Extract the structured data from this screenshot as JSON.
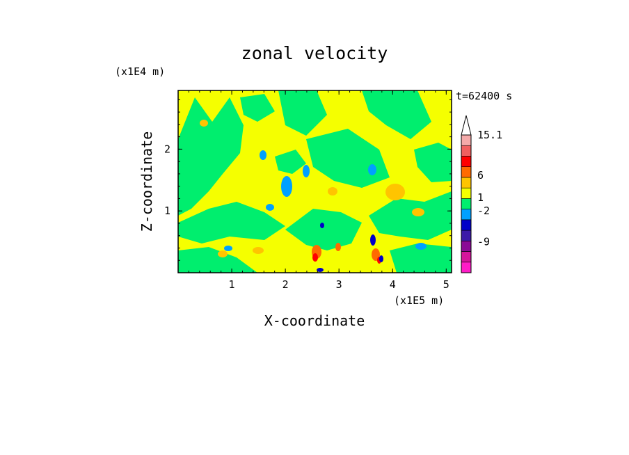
{
  "chart_data": {
    "type": "heatmap",
    "title": "zonal velocity",
    "time_label": "t=62400 s",
    "xlabel": "X-coordinate",
    "ylabel": "Z-coordinate",
    "x_scale_label": "(x1E5 m)",
    "y_scale_label": "(x1E4 m)",
    "xlim": [
      0,
      5.1
    ],
    "ylim": [
      0,
      2.95
    ],
    "x_ticks": [
      1,
      2,
      3,
      4,
      5
    ],
    "y_ticks": [
      1,
      2
    ],
    "background_color": "#f5ff00",
    "colorbar": {
      "levels": [
        {
          "color": "#ff1cc8"
        },
        {
          "color": "#d4149c"
        },
        {
          "color": "#8b0a96"
        },
        {
          "color": "#3c1aa8"
        },
        {
          "color": "#0000c8"
        },
        {
          "color": "#00a0ff"
        },
        {
          "color": "#00ee6e"
        },
        {
          "color": "#f5ff00"
        },
        {
          "color": "#ffc400"
        },
        {
          "color": "#ff6a00"
        },
        {
          "color": "#ff0000"
        },
        {
          "color": "#f06060"
        },
        {
          "color": "#f4aaaa"
        },
        {
          "color": "#ffffff"
        }
      ],
      "labels": [
        "15.1",
        "6",
        "1",
        "-2",
        "-9"
      ],
      "label_values": [
        15.1,
        6,
        1,
        -2,
        -9
      ]
    }
  }
}
